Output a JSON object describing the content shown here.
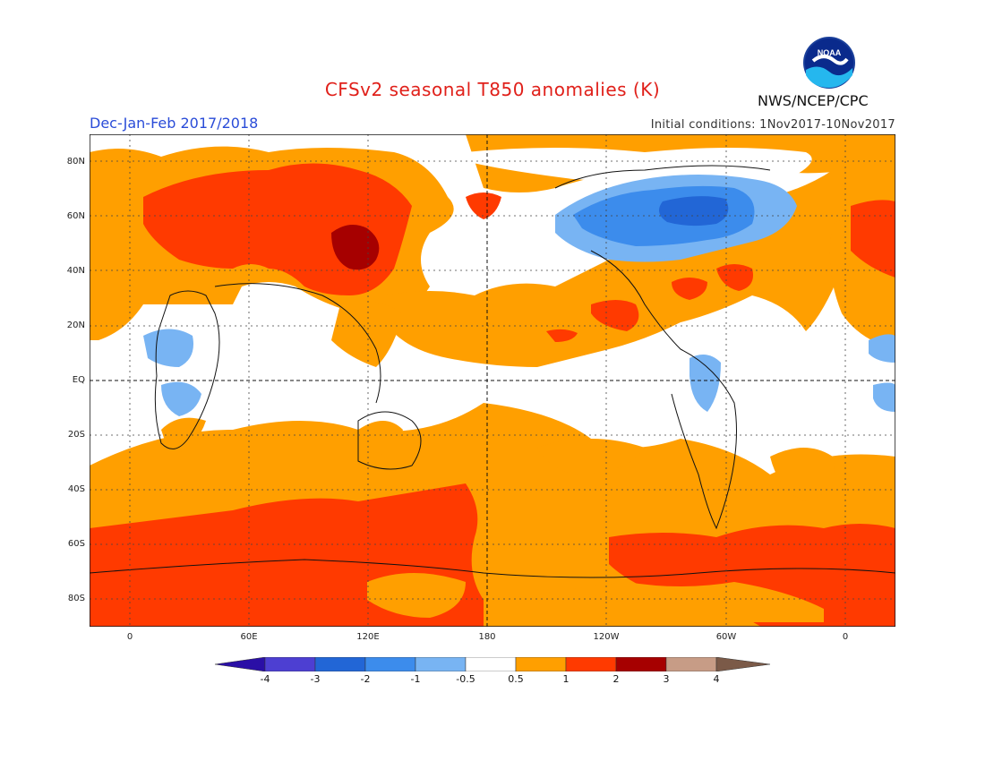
{
  "header": {
    "title": "CFSv2 seasonal T850 anomalies (K)",
    "season": "Dec-Jan-Feb 2017/2018",
    "initial_conditions": "Initial conditions: 1Nov2017-10Nov2017",
    "agency": "NWS/NCEP/CPC",
    "logo_text": "NOAA"
  },
  "map": {
    "lat_labels": [
      "80N",
      "60N",
      "40N",
      "20N",
      "EQ",
      "20S",
      "40S",
      "60S",
      "80S"
    ],
    "lon_labels": [
      "0",
      "60E",
      "120E",
      "180",
      "120W",
      "60W",
      "0"
    ],
    "dateline_label": "180",
    "equator_label": "EQ"
  },
  "colorbar": {
    "tick_labels": [
      "-4",
      "-3",
      "-2",
      "-1",
      "-0.5",
      "0.5",
      "1",
      "2",
      "3",
      "4"
    ],
    "colors": {
      "lt_m4": "#2a0fa6",
      "m4_m3": "#4d3fd2",
      "m3_m2": "#2266d6",
      "m2_m1": "#3c8cec",
      "m1_m05": "#78b4f3",
      "neutral": "#ffffff",
      "p05_1": "#ff9f00",
      "p1_2": "#ff3a00",
      "p2_3": "#a60000",
      "p3_4": "#c79c86",
      "gt_4": "#7b5a48"
    }
  }
}
